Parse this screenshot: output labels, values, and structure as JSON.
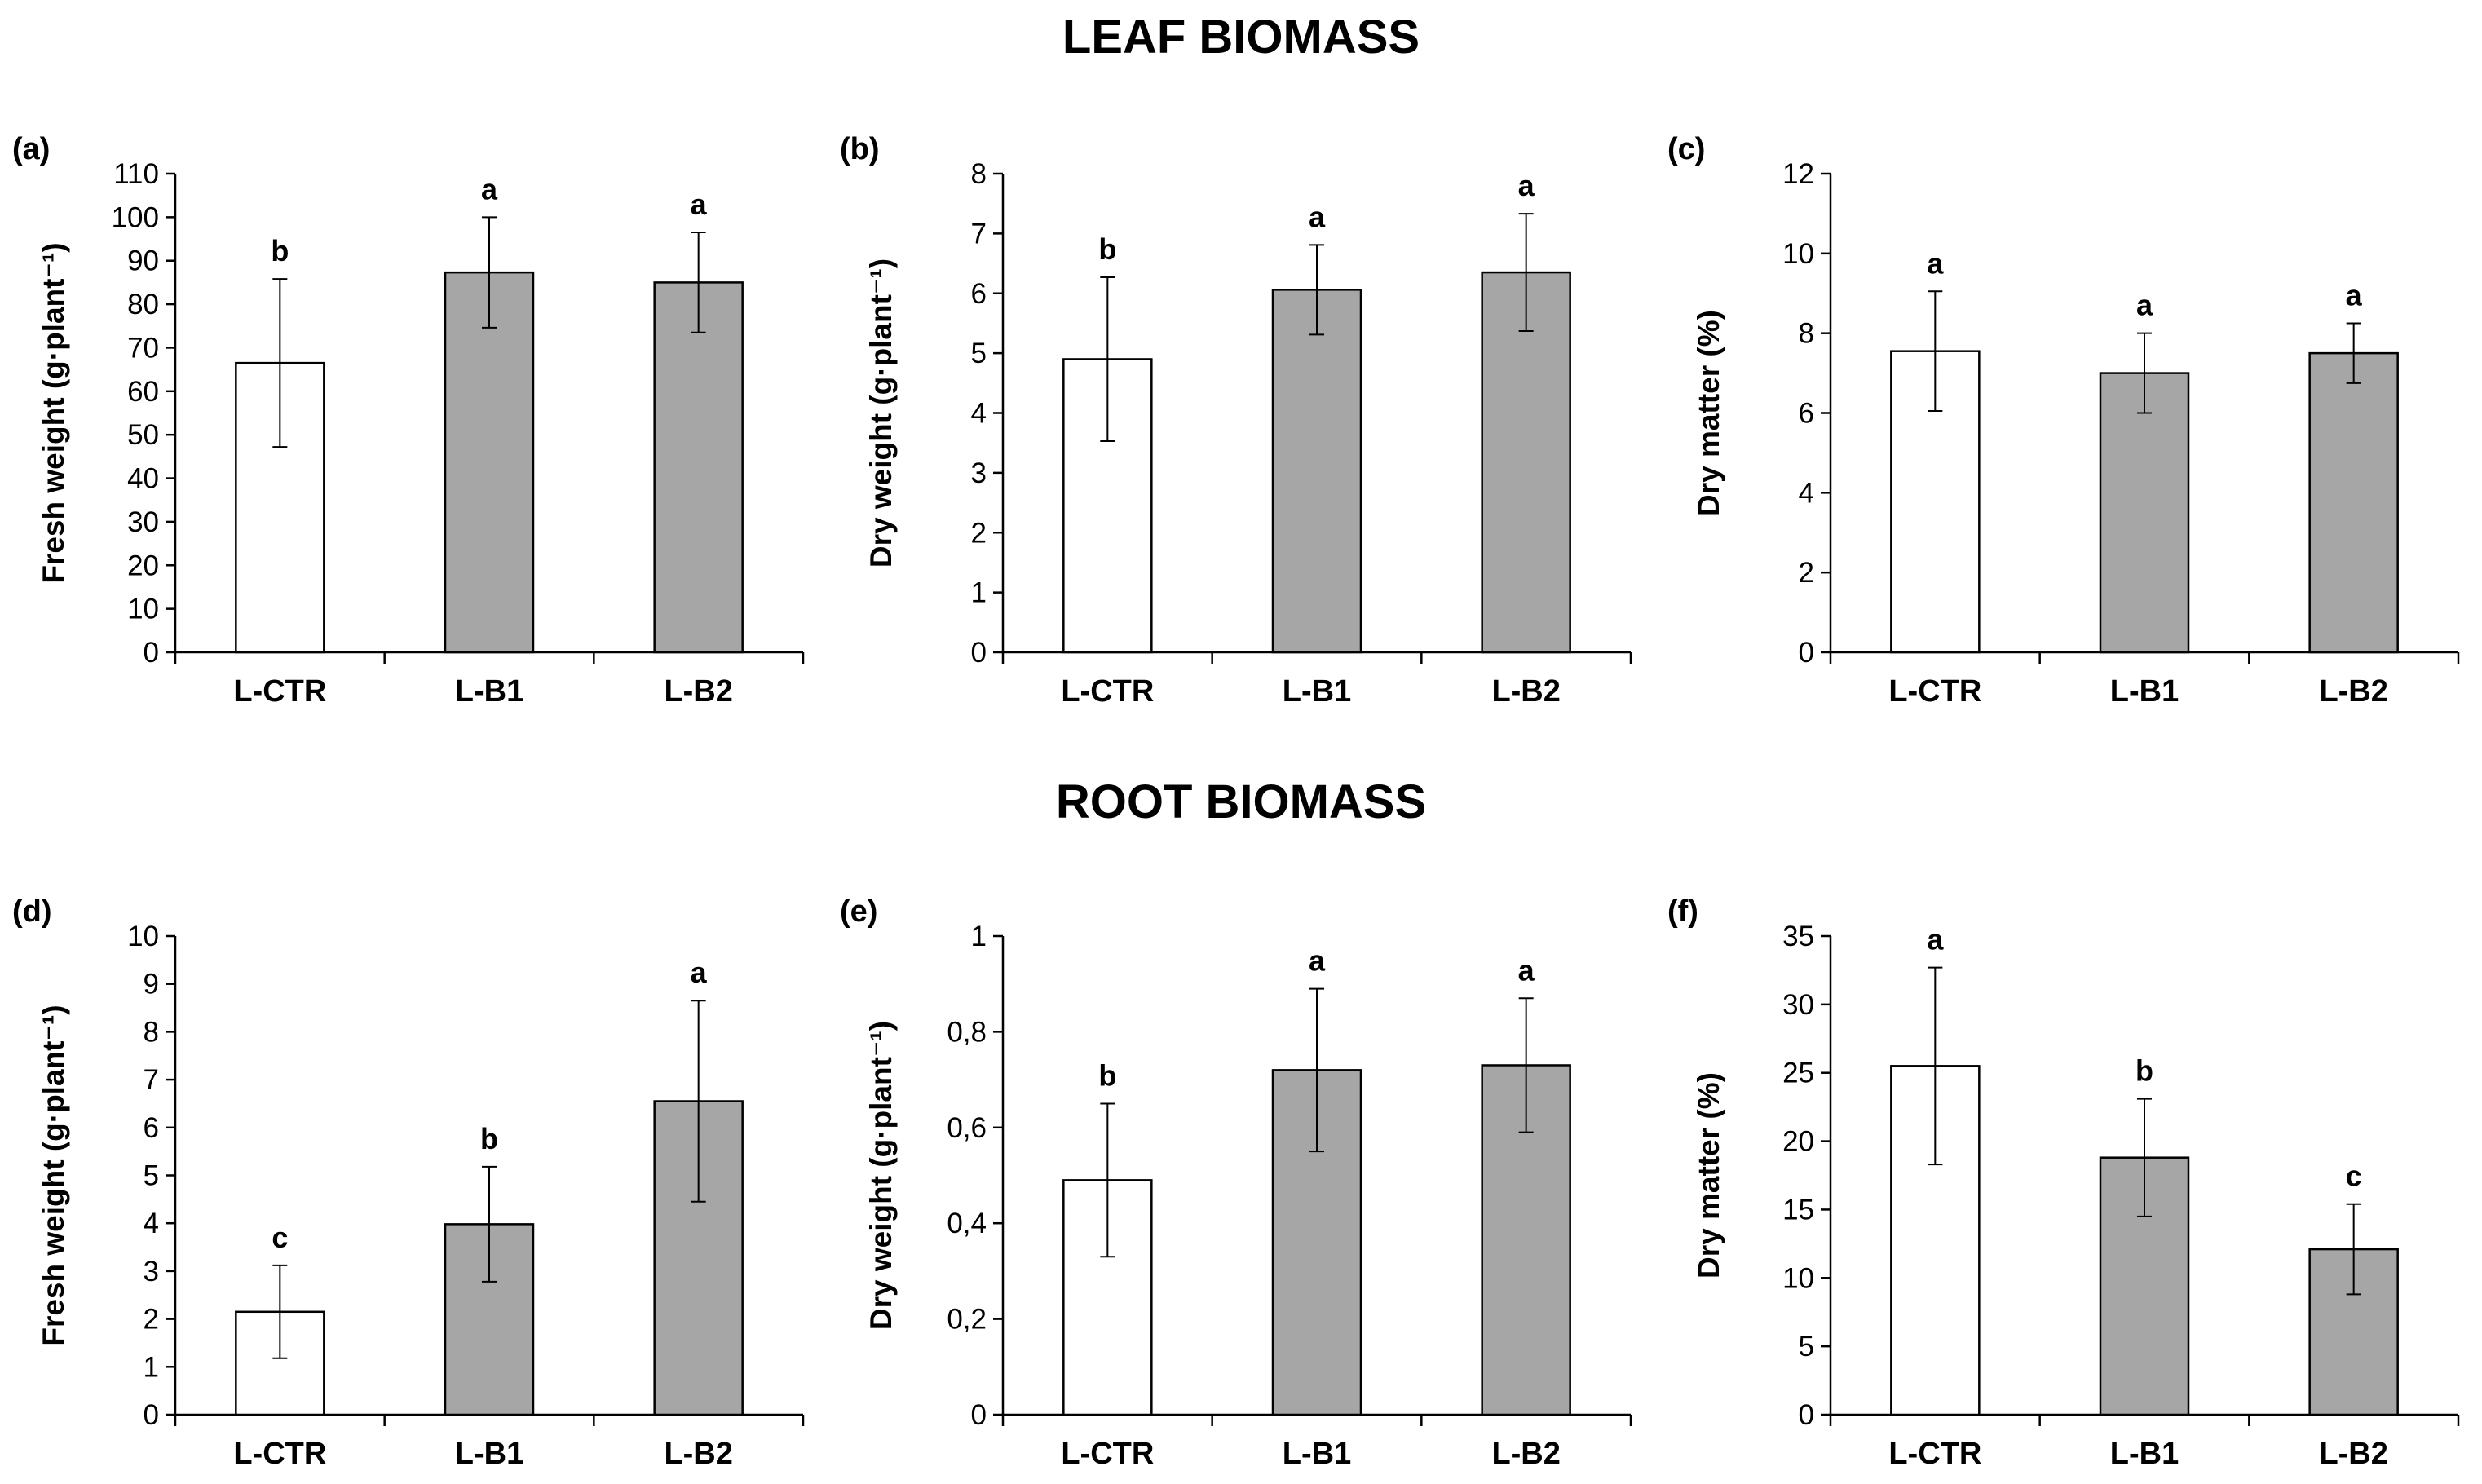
{
  "titles": {
    "leaf": "LEAF BIOMASS",
    "root": "ROOT BIOMASS"
  },
  "colors": {
    "control_fill": "#ffffff",
    "treatment_fill": "#a6a6a6",
    "edge": "#000000",
    "axis": "#000000"
  },
  "chart_data": [
    {
      "id": "a",
      "type": "bar",
      "panel_label": "(a)",
      "categories": [
        "L-CTR",
        "L-B1",
        "L-B2"
      ],
      "values": [
        66.5,
        87.3,
        85.0
      ],
      "errors": [
        19.3,
        12.7,
        11.5
      ],
      "letters": [
        "b",
        "a",
        "a"
      ],
      "ylabel": "Fresh weight (g·plant⁻¹)",
      "ylim": [
        0,
        110
      ],
      "ticks": [
        "0",
        "10",
        "20",
        "30",
        "40",
        "50",
        "60",
        "70",
        "80",
        "90",
        "100",
        "110"
      ]
    },
    {
      "id": "b",
      "type": "bar",
      "panel_label": "(b)",
      "categories": [
        "L-CTR",
        "L-B1",
        "L-B2"
      ],
      "values": [
        4.9,
        6.06,
        6.35
      ],
      "errors": [
        1.37,
        0.75,
        0.98
      ],
      "letters": [
        "b",
        "a",
        "a"
      ],
      "ylabel": "Dry weight (g·plant⁻¹)",
      "ylim": [
        0,
        8
      ],
      "ticks": [
        "0",
        "1",
        "2",
        "3",
        "4",
        "5",
        "6",
        "7",
        "8"
      ]
    },
    {
      "id": "c",
      "type": "bar",
      "panel_label": "(c)",
      "categories": [
        "L-CTR",
        "L-B1",
        "L-B2"
      ],
      "values": [
        7.55,
        7.0,
        7.5
      ],
      "errors": [
        1.5,
        1.0,
        0.75
      ],
      "letters": [
        "a",
        "a",
        "a"
      ],
      "ylabel": "Dry matter (%)",
      "ylim": [
        0,
        12
      ],
      "ticks": [
        "0",
        "2",
        "4",
        "6",
        "8",
        "10",
        "12"
      ]
    },
    {
      "id": "d",
      "type": "bar",
      "panel_label": "(d)",
      "categories": [
        "L-CTR",
        "L-B1",
        "L-B2"
      ],
      "values": [
        2.15,
        3.98,
        6.55
      ],
      "errors": [
        0.97,
        1.2,
        2.1
      ],
      "letters": [
        "c",
        "b",
        "a"
      ],
      "ylabel": "Fresh weight (g·plant⁻¹)",
      "ylim": [
        0,
        10
      ],
      "ticks": [
        "0",
        "1",
        "2",
        "3",
        "4",
        "5",
        "6",
        "7",
        "8",
        "9",
        "10"
      ]
    },
    {
      "id": "e",
      "type": "bar",
      "panel_label": "(e)",
      "categories": [
        "L-CTR",
        "L-B1",
        "L-B2"
      ],
      "values": [
        0.49,
        0.72,
        0.73
      ],
      "errors": [
        0.16,
        0.17,
        0.14
      ],
      "letters": [
        "b",
        "a",
        "a"
      ],
      "ylabel": "Dry weight (g·plant⁻¹)",
      "ylim": [
        0,
        1
      ],
      "ticks": [
        "0",
        "0,2",
        "0,4",
        "0,6",
        "0,8",
        "1"
      ]
    },
    {
      "id": "f",
      "type": "bar",
      "panel_label": "(f)",
      "categories": [
        "L-CTR",
        "L-B1",
        "L-B2"
      ],
      "values": [
        25.5,
        18.8,
        12.1
      ],
      "errors": [
        7.2,
        4.3,
        3.3
      ],
      "letters": [
        "a",
        "b",
        "c"
      ],
      "ylabel": "Dry matter (%)",
      "ylim": [
        0,
        35
      ],
      "ticks": [
        "0",
        "5",
        "10",
        "15",
        "20",
        "25",
        "30",
        "35"
      ]
    }
  ]
}
